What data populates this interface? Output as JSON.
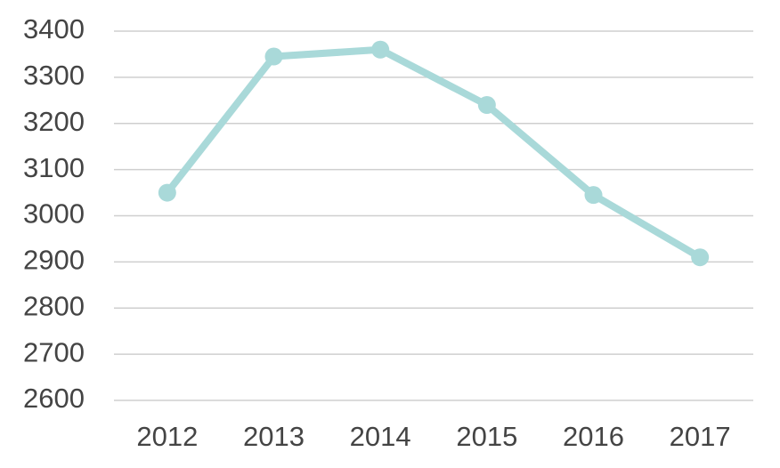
{
  "chart_data": {
    "type": "line",
    "categories": [
      "2012",
      "2013",
      "2014",
      "2015",
      "2016",
      "2017"
    ],
    "values": [
      3050,
      3345,
      3360,
      3240,
      3045,
      2910
    ],
    "color": "#a9d9d9",
    "ylim": [
      2600,
      3400
    ],
    "yticks": [
      2600,
      2700,
      2800,
      2900,
      3000,
      3100,
      3200,
      3300,
      3400
    ],
    "grid": true
  }
}
